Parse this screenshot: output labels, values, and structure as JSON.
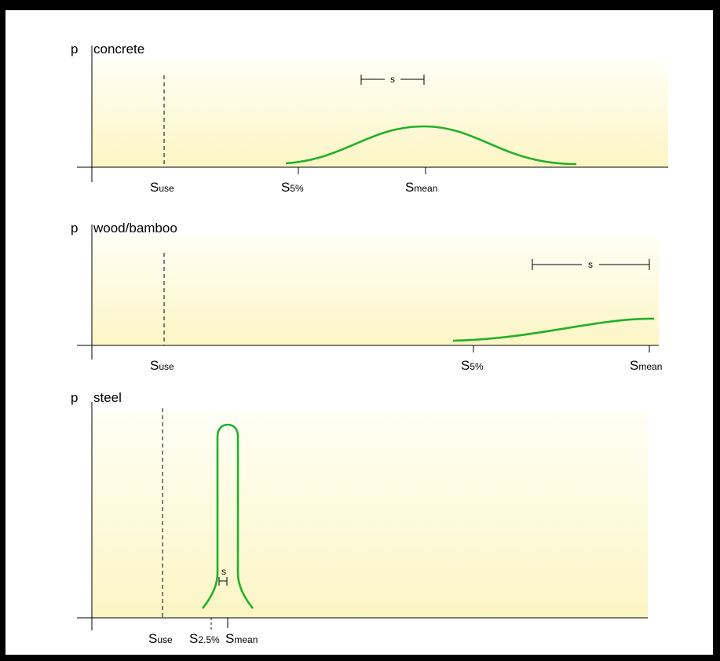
{
  "colors": {
    "curve": "#22b02a",
    "band_top": "#fffff6",
    "band_bottom": "#fcf5c4",
    "axis": "#000000",
    "frame_outer": "#000000"
  },
  "panels": [
    {
      "axis_label": "p",
      "material": "concrete",
      "spread_label": "s",
      "ticks": [
        {
          "main": "S",
          "sub": "use"
        },
        {
          "main": "S",
          "sub": "5%"
        },
        {
          "main": "S",
          "sub": "mean"
        }
      ]
    },
    {
      "axis_label": "p",
      "material": "wood/bamboo",
      "spread_label": "s",
      "ticks": [
        {
          "main": "S",
          "sub": "use"
        },
        {
          "main": "S",
          "sub": "5%"
        },
        {
          "main": "S",
          "sub": "mean"
        }
      ]
    },
    {
      "axis_label": "p",
      "material": "steel",
      "spread_label": "s",
      "ticks": [
        {
          "main": "S",
          "sub": "use"
        },
        {
          "main": "S",
          "sub": "2.5%"
        },
        {
          "main": "S",
          "sub": "mean"
        }
      ]
    }
  ]
}
